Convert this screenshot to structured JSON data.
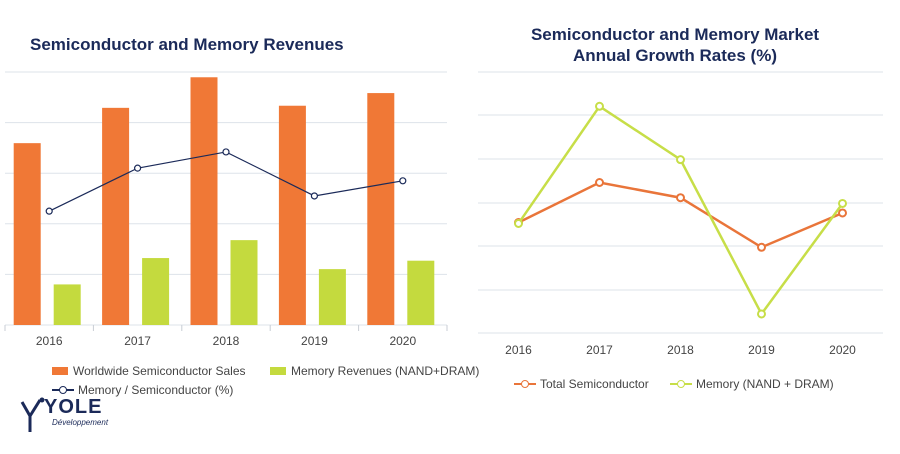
{
  "chart_data": [
    {
      "type": "bar",
      "title": "Semiconductor and Memory Revenues",
      "categories": [
        "2016",
        "2017",
        "2018",
        "2019",
        "2020"
      ],
      "series": [
        {
          "name": "Worldwide Semiconductor Sales",
          "kind": "bar",
          "color": "#f07836",
          "values": [
            345,
            412,
            470,
            416,
            440
          ]
        },
        {
          "name": "Memory Revenues (NAND+DRAM)",
          "kind": "bar",
          "color": "#c4da3e",
          "values": [
            77,
            127,
            161,
            106,
            122
          ]
        },
        {
          "name": "Memory / Semiconductor (%)",
          "kind": "line",
          "color": "#1b2a59",
          "values": [
            22.5,
            31,
            34.2,
            25.5,
            28.5
          ]
        }
      ],
      "ylim": [
        0,
        480
      ],
      "y2lim": [
        0,
        50
      ],
      "grid": true,
      "legend": "bottom"
    },
    {
      "type": "line",
      "title": "Semiconductor and Memory Market Annual Growth Rates (%)",
      "categories": [
        "2016",
        "2017",
        "2018",
        "2019",
        "2020"
      ],
      "series": [
        {
          "name": "Total Semiconductor",
          "color": "#e9753a",
          "values": [
            1,
            22,
            14,
            -12,
            6
          ]
        },
        {
          "name": "Memory (NAND + DRAM)",
          "color": "#c7de48",
          "values": [
            0.5,
            62,
            34,
            -47,
            11
          ]
        }
      ],
      "ylim": [
        -57,
        80
      ],
      "grid": true,
      "legend": "bottom"
    }
  ],
  "logo": {
    "name": "YOLE",
    "subtitle": "Développement"
  }
}
